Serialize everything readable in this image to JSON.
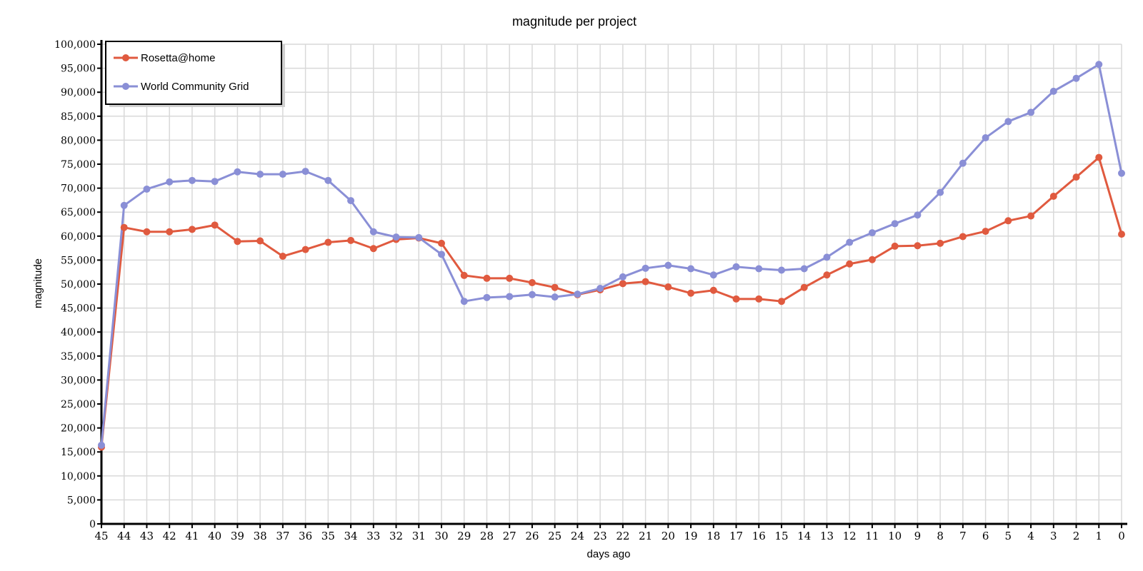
{
  "chart_data": {
    "type": "line",
    "title": "magnitude per project",
    "xlabel": "days ago",
    "ylabel": "magnitude",
    "x": [
      45,
      44,
      43,
      42,
      41,
      40,
      39,
      38,
      37,
      36,
      35,
      34,
      33,
      32,
      31,
      30,
      29,
      28,
      27,
      26,
      25,
      24,
      23,
      22,
      21,
      20,
      19,
      18,
      17,
      16,
      15,
      14,
      13,
      12,
      11,
      10,
      9,
      8,
      7,
      6,
      5,
      4,
      3,
      2,
      1,
      0
    ],
    "ylim": [
      0,
      100000
    ],
    "yticks": [
      0,
      5000,
      10000,
      15000,
      20000,
      25000,
      30000,
      35000,
      40000,
      45000,
      50000,
      55000,
      60000,
      65000,
      70000,
      75000,
      80000,
      85000,
      90000,
      95000,
      100000
    ],
    "ytick_labels": [
      "0",
      "5,000",
      "10,000",
      "15,000",
      "20,000",
      "25,000",
      "30,000",
      "35,000",
      "40,000",
      "45,000",
      "50,000",
      "55,000",
      "60,000",
      "65,000",
      "70,000",
      "75,000",
      "80,000",
      "85,000",
      "90,000",
      "95,000",
      "100,000"
    ],
    "grid": true,
    "legend_position": "top-left",
    "series": [
      {
        "name": "Rosetta@home",
        "color": "#e05a3f",
        "values": [
          16000,
          61800,
          60900,
          60900,
          61400,
          62300,
          58900,
          59000,
          55800,
          57200,
          58700,
          59100,
          57400,
          59300,
          59600,
          58500,
          51800,
          51200,
          51200,
          50300,
          49300,
          47800,
          48800,
          50100,
          50500,
          49400,
          48100,
          48700,
          46900,
          46900,
          46400,
          49300,
          51900,
          54200,
          55100,
          57900,
          58000,
          58500,
          59900,
          61000,
          63200,
          64200,
          68300,
          72300,
          76400,
          60400
        ]
      },
      {
        "name": "World Community Grid",
        "color": "#8a8fd6",
        "values": [
          16400,
          66400,
          69800,
          71300,
          71600,
          71400,
          73400,
          72900,
          72900,
          73500,
          71600,
          67400,
          60900,
          59800,
          59700,
          56200,
          46400,
          47200,
          47400,
          47800,
          47300,
          47900,
          49100,
          51500,
          53300,
          53900,
          53200,
          51900,
          53600,
          53200,
          52900,
          53200,
          55600,
          58700,
          60700,
          62600,
          64400,
          69100,
          75200,
          80500,
          83900,
          85800,
          90200,
          92900,
          95800,
          73100
        ]
      }
    ]
  }
}
